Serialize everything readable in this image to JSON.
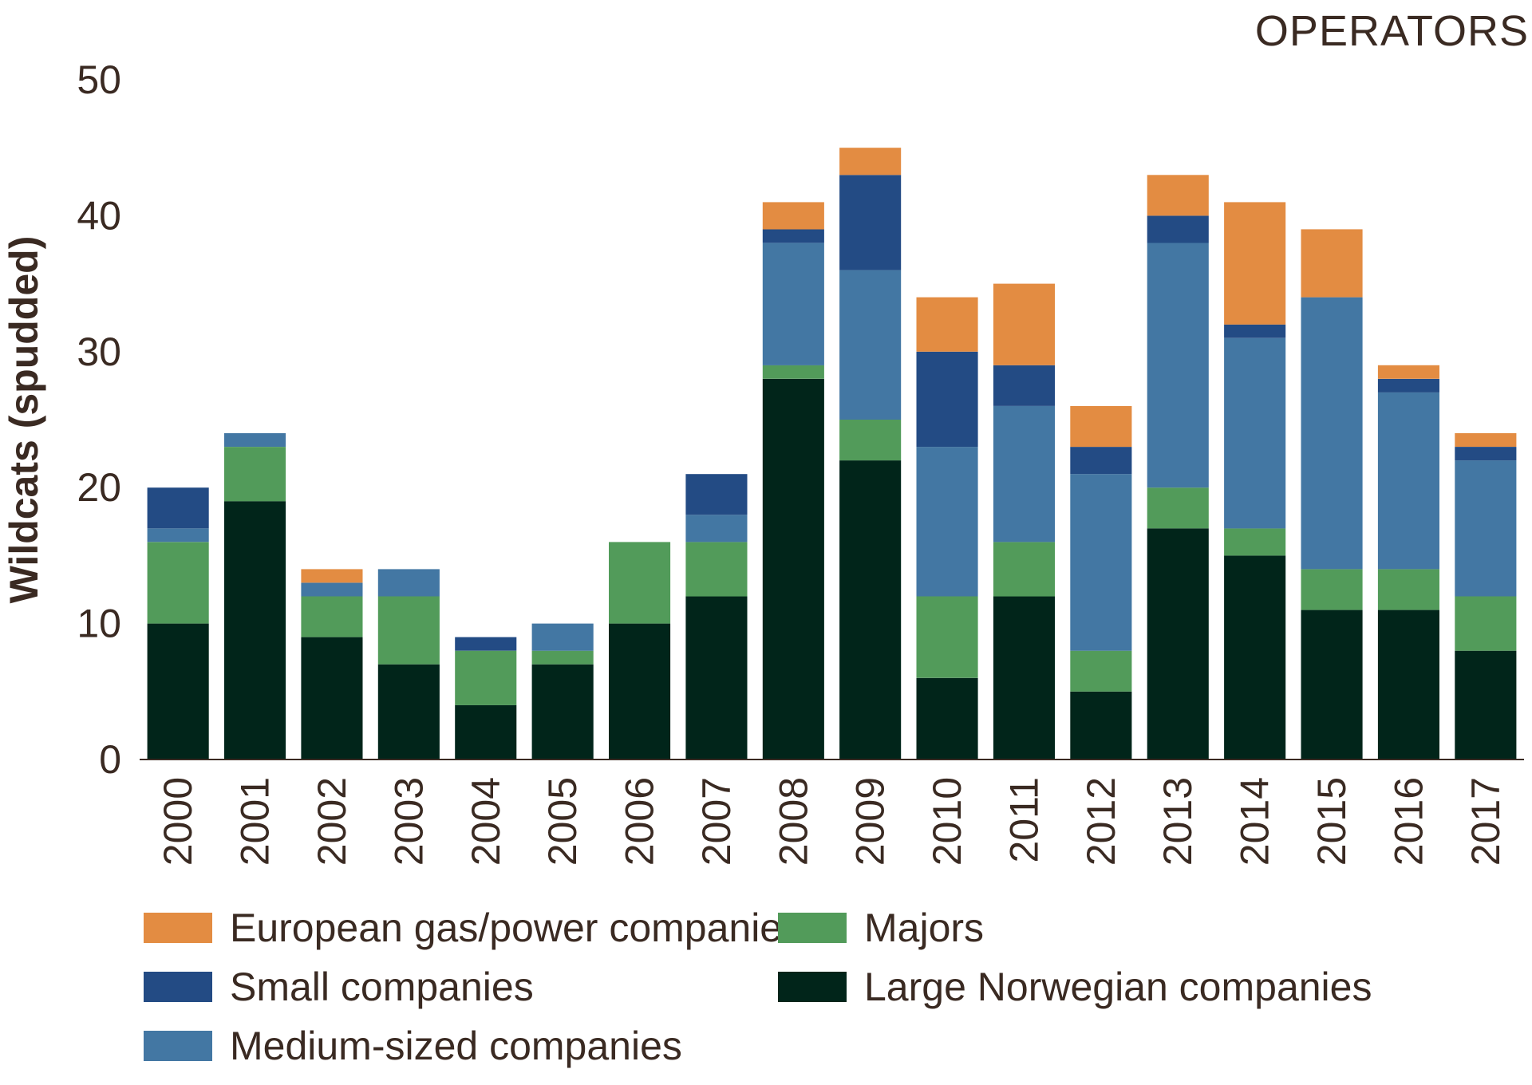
{
  "chart_data": {
    "type": "bar",
    "stacked": true,
    "title": "OPERATORS",
    "xlabel": "",
    "ylabel": "Wildcats (spudded)",
    "ylim": [
      0,
      50
    ],
    "yticks": [
      0,
      10,
      20,
      30,
      40,
      50
    ],
    "grid": false,
    "legend_position": "bottom",
    "categories": [
      "2000",
      "2001",
      "2002",
      "2003",
      "2004",
      "2005",
      "2006",
      "2007",
      "2008",
      "2009",
      "2010",
      "2011",
      "2012",
      "2013",
      "2014",
      "2015",
      "2016",
      "2017"
    ],
    "series": [
      {
        "name": "Large Norwegian companies",
        "color": "#01251a",
        "values": [
          10,
          19,
          9,
          7,
          4,
          7,
          10,
          12,
          28,
          22,
          6,
          12,
          5,
          17,
          15,
          11,
          11,
          8
        ]
      },
      {
        "name": "Majors",
        "color": "#529b5a",
        "values": [
          6,
          4,
          3,
          5,
          4,
          1,
          6,
          4,
          1,
          3,
          6,
          4,
          3,
          3,
          2,
          3,
          3,
          4
        ]
      },
      {
        "name": "Medium-sized companies",
        "color": "#4377a3",
        "values": [
          1,
          1,
          1,
          2,
          0,
          2,
          0,
          2,
          9,
          11,
          11,
          10,
          13,
          18,
          14,
          20,
          13,
          10
        ]
      },
      {
        "name": "Small companies",
        "color": "#234b84",
        "values": [
          3,
          0,
          0,
          0,
          1,
          0,
          0,
          3,
          1,
          7,
          7,
          3,
          2,
          2,
          1,
          0,
          1,
          1
        ]
      },
      {
        "name": "European gas/power companies",
        "color": "#e38c42",
        "values": [
          0,
          0,
          1,
          0,
          0,
          0,
          0,
          0,
          2,
          2,
          4,
          6,
          3,
          3,
          9,
          5,
          1,
          1
        ]
      }
    ],
    "legend_order": [
      "European gas/power companies",
      "Majors",
      "Small companies",
      "Large Norwegian companies",
      "Medium-sized companies"
    ]
  }
}
